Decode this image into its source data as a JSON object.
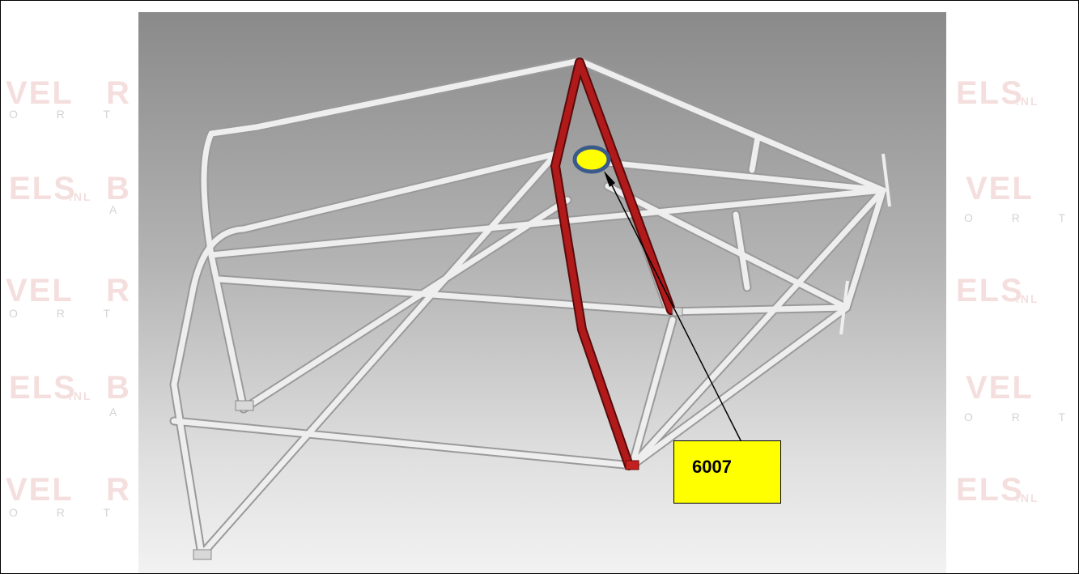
{
  "callout": {
    "label": "6007"
  },
  "colors": {
    "highlight_tube": "#a01818",
    "tube": "#e6e6e6",
    "marker_fill": "#ffff00",
    "marker_ring": "#3a5a8c",
    "watermark": "#c23a3a"
  },
  "watermark": {
    "fragments": [
      "VEL",
      "R",
      "ELS",
      ".NL",
      "B",
      "A",
      "O R T"
    ]
  }
}
